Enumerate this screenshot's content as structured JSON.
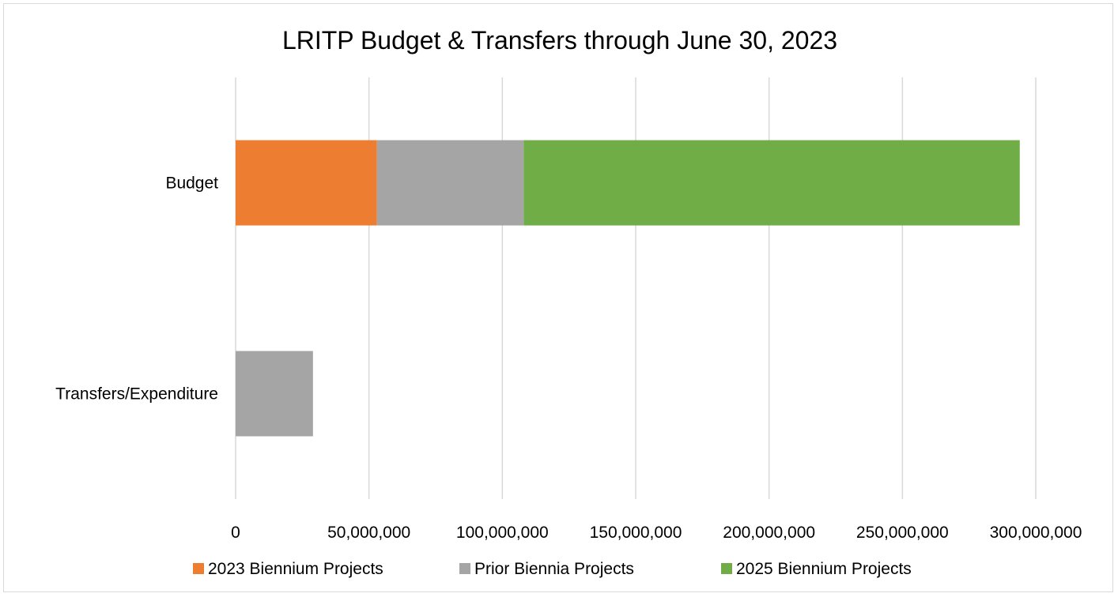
{
  "chart_data": {
    "type": "bar",
    "orientation": "horizontal",
    "stacked": true,
    "title": "LRITP Budget & Transfers through June 30, 2023",
    "categories": [
      "Budget",
      "Transfers/Expenditure"
    ],
    "series": [
      {
        "name": "2023 Biennium Projects",
        "color": "#ED7D31",
        "values": [
          53000000,
          0
        ]
      },
      {
        "name": "Prior Biennia Projects",
        "color": "#A5A5A5",
        "values": [
          55000000,
          29000000
        ]
      },
      {
        "name": "2025 Biennium Projects",
        "color": "#70AD47",
        "values": [
          186000000,
          0
        ]
      }
    ],
    "xlim": [
      0,
      300000000
    ],
    "xticks": [
      "0",
      "50,000,000",
      "100,000,000",
      "150,000,000",
      "200,000,000",
      "250,000,000",
      "300,000,000"
    ],
    "grid": "vertical",
    "legend_position": "bottom"
  }
}
